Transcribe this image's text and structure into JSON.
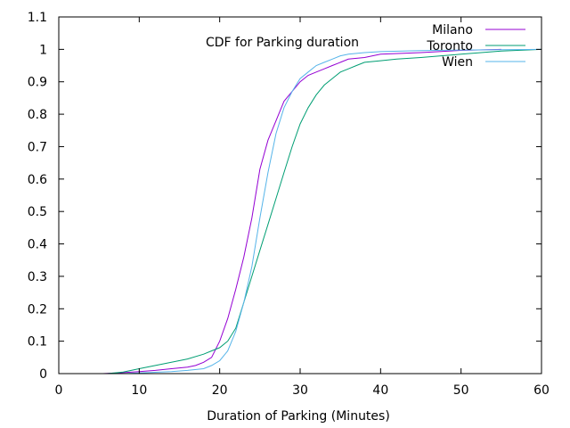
{
  "chart_data": {
    "type": "line",
    "title": "",
    "annotation": "CDF for Parking duration",
    "xlabel": "Duration of Parking (Minutes)",
    "ylabel": "",
    "xlim": [
      0,
      60
    ],
    "ylim": [
      0,
      1.1
    ],
    "xticks": [
      0,
      10,
      20,
      30,
      40,
      50,
      60
    ],
    "yticks": [
      0,
      0.1,
      0.2,
      0.3,
      0.4,
      0.5,
      0.6,
      0.7,
      0.8,
      0.9,
      1,
      1.1
    ],
    "xtick_labels": [
      "0",
      "10",
      "20",
      "30",
      "40",
      "50",
      "60"
    ],
    "ytick_labels": [
      "0",
      "0.1",
      "0.2",
      "0.3",
      "0.4",
      "0.5",
      "0.6",
      "0.7",
      "0.8",
      "0.9",
      "1",
      "1.1"
    ],
    "grid": false,
    "legend_position": "top-right",
    "series": [
      {
        "name": "Milano",
        "color": "#9400d3",
        "x": [
          5.5,
          8,
          10,
          12,
          14,
          16,
          17,
          18,
          19,
          20,
          21,
          22,
          23,
          24,
          25,
          26,
          27,
          28,
          29,
          30,
          31,
          32,
          33,
          34,
          35,
          36,
          38,
          40,
          45,
          50,
          55
        ],
        "y": [
          0,
          0.003,
          0.006,
          0.01,
          0.015,
          0.02,
          0.025,
          0.035,
          0.05,
          0.1,
          0.17,
          0.26,
          0.36,
          0.48,
          0.63,
          0.72,
          0.78,
          0.84,
          0.87,
          0.9,
          0.92,
          0.93,
          0.94,
          0.95,
          0.96,
          0.97,
          0.975,
          0.985,
          0.99,
          0.997,
          1
        ]
      },
      {
        "name": "Toronto",
        "color": "#009e73",
        "x": [
          6,
          8,
          10,
          12,
          14,
          16,
          18,
          19,
          20,
          21,
          22,
          23,
          24,
          25,
          26,
          27,
          28,
          29,
          30,
          31,
          32,
          33,
          34,
          35,
          36,
          37,
          38,
          40,
          42,
          45,
          50,
          55,
          60
        ],
        "y": [
          0,
          0.005,
          0.015,
          0.025,
          0.035,
          0.045,
          0.06,
          0.07,
          0.08,
          0.1,
          0.14,
          0.22,
          0.3,
          0.38,
          0.46,
          0.54,
          0.62,
          0.7,
          0.77,
          0.82,
          0.86,
          0.89,
          0.91,
          0.93,
          0.94,
          0.95,
          0.96,
          0.965,
          0.97,
          0.975,
          0.985,
          0.995,
          1
        ]
      },
      {
        "name": "Wien",
        "color": "#56b4e9",
        "x": [
          6,
          8,
          10,
          12,
          14,
          16,
          18,
          19,
          20,
          21,
          22,
          23,
          24,
          25,
          26,
          27,
          28,
          29,
          30,
          31,
          32,
          33,
          34,
          35,
          36,
          38,
          40,
          45,
          50,
          55,
          60
        ],
        "y": [
          0,
          0,
          0.002,
          0.004,
          0.006,
          0.01,
          0.015,
          0.025,
          0.04,
          0.07,
          0.13,
          0.22,
          0.33,
          0.48,
          0.62,
          0.74,
          0.82,
          0.87,
          0.91,
          0.93,
          0.95,
          0.96,
          0.97,
          0.98,
          0.985,
          0.99,
          0.993,
          0.996,
          0.998,
          0.999,
          1
        ]
      }
    ]
  }
}
